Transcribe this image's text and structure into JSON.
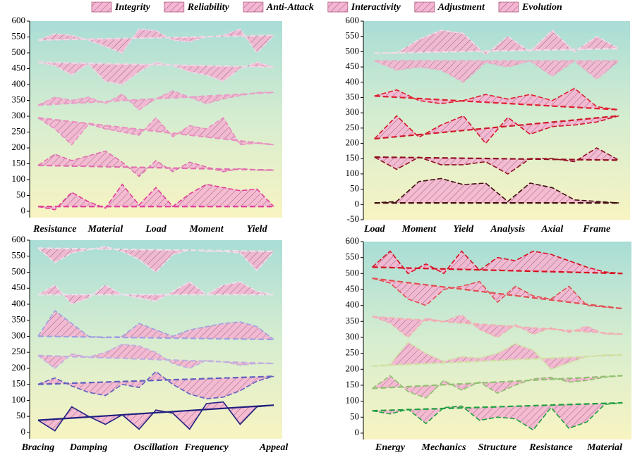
{
  "legend": [
    "Integrity",
    "Reliability",
    "Anti-Attack",
    "Interactivity",
    "Adjustment",
    "Evolution"
  ],
  "fill_color": "#f4b6d2",
  "chart_data": [
    {
      "type": "band",
      "categories": [
        null,
        "Resistance",
        null,
        null,
        "Material",
        null,
        null,
        "Load",
        null,
        null,
        "Moment",
        null,
        null,
        "Yield",
        null
      ],
      "ylim": [
        -20,
        600
      ],
      "yticks": [
        0,
        50,
        100,
        150,
        200,
        250,
        300,
        350,
        400,
        450,
        500,
        550,
        600
      ],
      "series": [
        {
          "name": "Integrity",
          "color": "#f0d6e6",
          "values": [
            540,
            560,
            555,
            540,
            520,
            500,
            575,
            570,
            540,
            535,
            550,
            555,
            575,
            500,
            555
          ],
          "baseline": [
            540,
            555
          ]
        },
        {
          "name": "Reliability",
          "color": "#f0d6e6",
          "values": [
            470,
            460,
            430,
            465,
            410,
            400,
            440,
            470,
            460,
            440,
            430,
            410,
            450,
            470,
            455
          ],
          "baseline": [
            470,
            455
          ]
        },
        {
          "name": "Anti-Attack",
          "color": "#e8a0c8",
          "values": [
            335,
            360,
            350,
            360,
            340,
            370,
            320,
            355,
            380,
            360,
            340,
            355,
            365,
            375,
            375
          ],
          "baseline": [
            335,
            375
          ]
        },
        {
          "name": "Interactivity",
          "color": "#e890c0",
          "values": [
            295,
            260,
            210,
            275,
            260,
            250,
            240,
            295,
            235,
            270,
            260,
            295,
            210,
            215,
            210
          ],
          "baseline": [
            295,
            210
          ]
        },
        {
          "name": "Adjustment",
          "color": "#e070b0",
          "values": [
            145,
            180,
            160,
            175,
            190,
            155,
            110,
            160,
            125,
            155,
            140,
            125,
            135,
            130,
            130
          ],
          "baseline": [
            145,
            130
          ]
        },
        {
          "name": "Evolution",
          "color": "#e0409a",
          "values": [
            15,
            5,
            60,
            30,
            10,
            85,
            20,
            75,
            15,
            55,
            85,
            75,
            65,
            70,
            15
          ],
          "baseline": [
            15,
            15
          ]
        }
      ]
    },
    {
      "type": "band",
      "categories": [
        "Load",
        null,
        "Moment",
        null,
        "Yield",
        null,
        "Analysis",
        null,
        "Axial",
        null,
        "Frame",
        null
      ],
      "ylim": [
        -50,
        600
      ],
      "yticks": [
        -50,
        0,
        50,
        100,
        150,
        200,
        250,
        300,
        350,
        400,
        450,
        500,
        550,
        600
      ],
      "series": [
        {
          "name": "Integrity",
          "color": "#f4dce8",
          "values": [
            495,
            495,
            540,
            570,
            560,
            490,
            550,
            500,
            570,
            500,
            550,
            510
          ],
          "baseline": [
            495,
            510
          ]
        },
        {
          "name": "Reliability",
          "color": "#e8b0c8",
          "values": [
            470,
            440,
            450,
            440,
            400,
            465,
            450,
            470,
            420,
            470,
            410,
            470
          ],
          "baseline": [
            470,
            470
          ]
        },
        {
          "name": "Anti-Attack",
          "color": "#e02030",
          "values": [
            355,
            375,
            340,
            330,
            340,
            360,
            345,
            360,
            340,
            380,
            320,
            310
          ],
          "baseline": [
            355,
            310
          ]
        },
        {
          "name": "Interactivity",
          "color": "#d01828",
          "values": [
            215,
            290,
            220,
            260,
            290,
            200,
            285,
            230,
            255,
            260,
            270,
            290
          ],
          "baseline": [
            215,
            290
          ]
        },
        {
          "name": "Adjustment",
          "color": "#901020",
          "values": [
            155,
            115,
            155,
            130,
            130,
            140,
            100,
            150,
            150,
            140,
            185,
            145
          ],
          "baseline": [
            155,
            145
          ]
        },
        {
          "name": "Evolution",
          "color": "#401010",
          "values": [
            5,
            10,
            75,
            85,
            65,
            70,
            10,
            70,
            55,
            15,
            10,
            5
          ],
          "baseline": [
            5,
            5
          ]
        }
      ]
    },
    {
      "type": "band",
      "categories": [
        "Bracing",
        null,
        null,
        "Damping",
        null,
        null,
        null,
        "Oscillation",
        null,
        null,
        "Frequency",
        null,
        null,
        null,
        "Appeal"
      ],
      "ylim": [
        -20,
        600
      ],
      "yticks": [
        0,
        50,
        100,
        150,
        200,
        250,
        300,
        350,
        400,
        450,
        500,
        550,
        600
      ],
      "series": [
        {
          "name": "Integrity",
          "color": "#f0e0ee",
          "values": [
            575,
            530,
            560,
            570,
            580,
            565,
            540,
            500,
            555,
            570,
            565,
            565,
            560,
            505,
            565
          ],
          "baseline": [
            575,
            565
          ]
        },
        {
          "name": "Reliability",
          "color": "#f0e0ee",
          "values": [
            430,
            460,
            400,
            420,
            460,
            430,
            420,
            410,
            440,
            470,
            430,
            460,
            470,
            440,
            430
          ],
          "baseline": [
            430,
            430
          ]
        },
        {
          "name": "Anti-Attack",
          "color": "#a0a0e0",
          "values": [
            300,
            380,
            340,
            300,
            295,
            300,
            340,
            320,
            300,
            320,
            330,
            340,
            345,
            330,
            290
          ],
          "baseline": [
            300,
            290
          ]
        },
        {
          "name": "Interactivity",
          "color": "#c0b0e0",
          "values": [
            240,
            200,
            245,
            235,
            250,
            275,
            270,
            250,
            215,
            200,
            225,
            220,
            210,
            215,
            215
          ],
          "baseline": [
            240,
            215
          ]
        },
        {
          "name": "Adjustment",
          "color": "#6060c0",
          "values": [
            150,
            170,
            145,
            125,
            115,
            150,
            140,
            190,
            150,
            120,
            105,
            110,
            130,
            160,
            175
          ],
          "baseline": [
            150,
            175
          ]
        },
        {
          "name": "Evolution",
          "color": "#202080",
          "values": [
            38,
            5,
            80,
            50,
            25,
            55,
            10,
            70,
            60,
            10,
            90,
            95,
            25,
            80,
            85
          ],
          "baseline": [
            38,
            85
          ]
        }
      ]
    },
    {
      "type": "band",
      "categories": [
        null,
        "Energy",
        null,
        null,
        "Mechanics",
        null,
        null,
        "Structure",
        null,
        null,
        "Resistance",
        null,
        null,
        "Material",
        null
      ],
      "ylim": [
        -20,
        600
      ],
      "yticks": [
        0,
        50,
        100,
        150,
        200,
        250,
        300,
        350,
        400,
        450,
        500,
        550,
        600
      ],
      "series": [
        {
          "name": "Integrity",
          "color": "#d81020",
          "values": [
            520,
            570,
            500,
            530,
            500,
            570,
            510,
            550,
            540,
            570,
            560,
            540,
            520,
            505,
            500
          ],
          "baseline": [
            520,
            500
          ]
        },
        {
          "name": "Reliability",
          "color": "#e05050",
          "values": [
            485,
            470,
            420,
            400,
            450,
            460,
            475,
            410,
            460,
            430,
            420,
            460,
            400,
            395,
            390
          ],
          "baseline": [
            485,
            390
          ]
        },
        {
          "name": "Anti-Attack",
          "color": "#f0b0b0",
          "values": [
            365,
            345,
            300,
            360,
            350,
            370,
            325,
            300,
            340,
            310,
            330,
            315,
            335,
            310,
            310
          ],
          "baseline": [
            365,
            310
          ]
        },
        {
          "name": "Interactivity",
          "color": "#d0e0a0",
          "values": [
            210,
            215,
            285,
            250,
            225,
            240,
            235,
            250,
            280,
            260,
            200,
            220,
            240,
            245,
            245
          ],
          "baseline": [
            210,
            245
          ]
        },
        {
          "name": "Adjustment",
          "color": "#90c070",
          "values": [
            140,
            180,
            130,
            110,
            165,
            135,
            160,
            125,
            150,
            170,
            175,
            160,
            165,
            175,
            180
          ],
          "baseline": [
            140,
            180
          ]
        },
        {
          "name": "Evolution",
          "color": "#20a040",
          "values": [
            70,
            60,
            75,
            30,
            80,
            85,
            40,
            50,
            45,
            10,
            80,
            15,
            35,
            90,
            95
          ],
          "baseline": [
            70,
            95
          ]
        }
      ]
    }
  ]
}
